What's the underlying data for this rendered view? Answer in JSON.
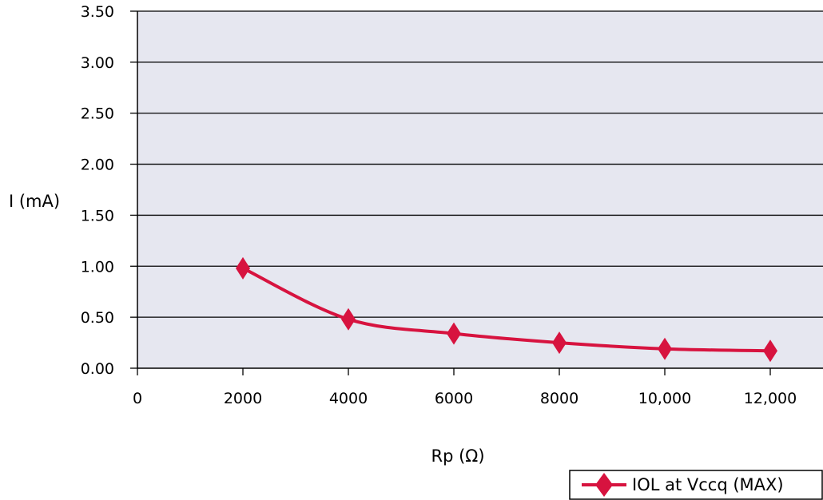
{
  "chart_data": {
    "type": "line",
    "title": "",
    "xlabel": "Rp (Ω)",
    "ylabel": "I (mA)",
    "xlim": [
      0,
      13000
    ],
    "ylim": [
      0,
      3.5
    ],
    "x_ticks": [
      0,
      2000,
      4000,
      6000,
      8000,
      10000,
      12000
    ],
    "x_tick_labels": [
      "0",
      "2000",
      "4000",
      "6000",
      "8000",
      "10,000",
      "12,000"
    ],
    "y_ticks": [
      0,
      0.5,
      1.0,
      1.5,
      2.0,
      2.5,
      3.0,
      3.5
    ],
    "y_tick_labels": [
      "0.00",
      "0.50",
      "1.00",
      "1.50",
      "2.00",
      "2.50",
      "3.00",
      "3.50"
    ],
    "grid": "horizontal",
    "legend_position": "bottom-right",
    "colors": {
      "plot_background": "#E6E7F0",
      "series": "#D7133F",
      "gridline": "#000000"
    },
    "series": [
      {
        "name": "IOL at Vccq (MAX)",
        "marker": "diamond",
        "x": [
          2000,
          4000,
          6000,
          8000,
          10000,
          12000
        ],
        "y": [
          0.98,
          0.48,
          0.34,
          0.25,
          0.19,
          0.17
        ]
      }
    ]
  }
}
